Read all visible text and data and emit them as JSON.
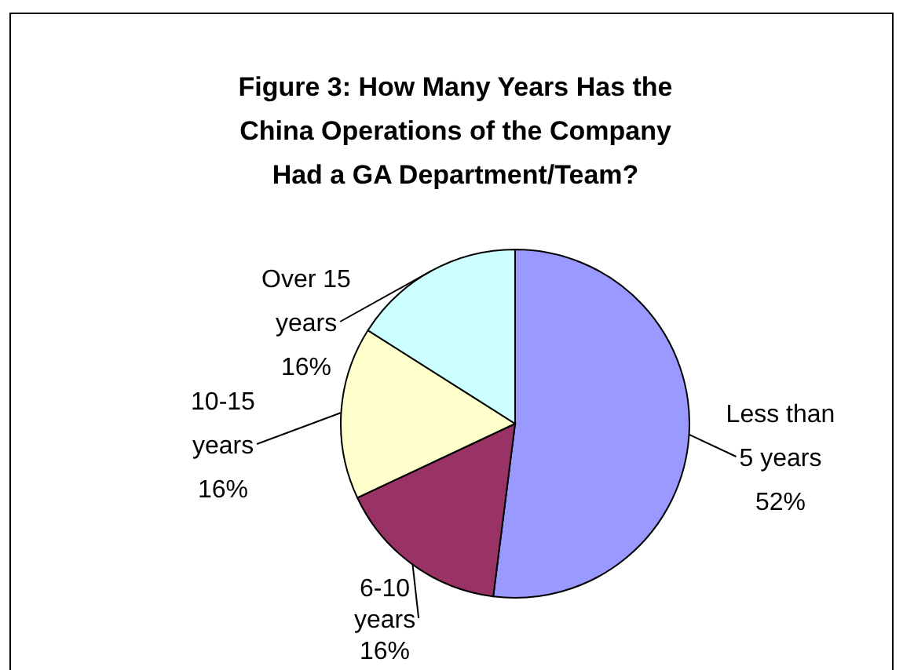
{
  "chart_data": {
    "type": "pie",
    "title": "Figure 3: How Many Years Has the China Operations of the Company Had a GA Department/Team?",
    "categories": [
      "Less than 5 years",
      "6-10 years",
      "10-15 years",
      "Over 15 years"
    ],
    "values": [
      52,
      16,
      16,
      16
    ],
    "colors": [
      "#9999ff",
      "#993366",
      "#ffffcc",
      "#ccffff"
    ],
    "value_labels": [
      "52%",
      "16%",
      "16%",
      "16%"
    ]
  }
}
